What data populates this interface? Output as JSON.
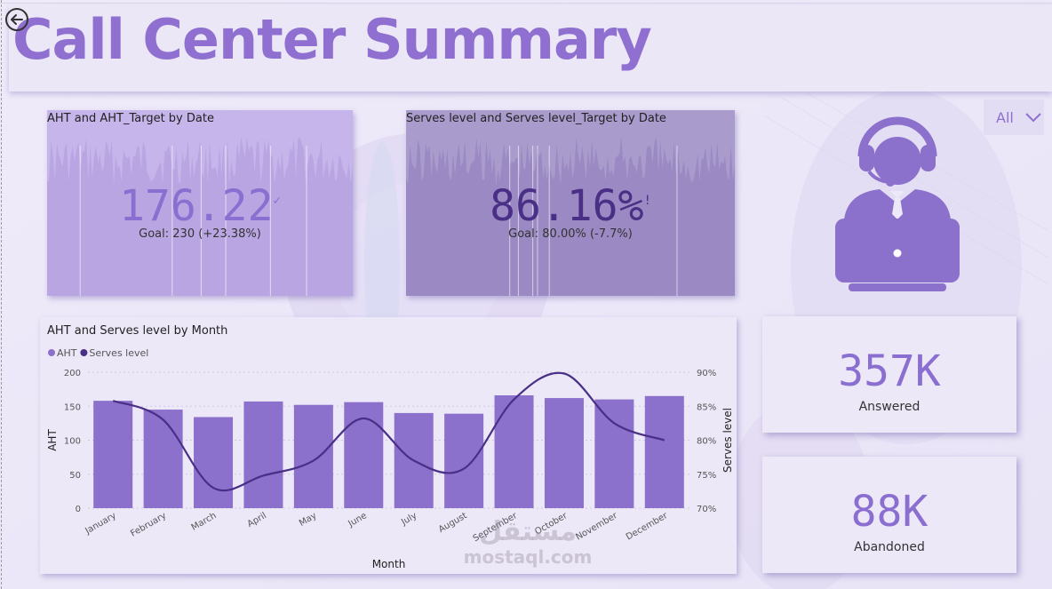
{
  "header": {
    "title": "Call Center Summary"
  },
  "slicer": {
    "value": "All"
  },
  "kpi_aht": {
    "title": "AHT and AHT_Target by Date",
    "value": "176.22",
    "status_mark": "✓",
    "goal": "Goal: 230 (+23.38%)"
  },
  "kpi_sl": {
    "title": "Serves level and Serves level_Target by Date",
    "value": "86.16%",
    "status_mark": "!",
    "goal": "Goal: 80.00% (-7.7%)"
  },
  "stats": {
    "answered_value": "357K",
    "answered_label": "Answered",
    "abandoned_value": "88K",
    "abandoned_label": "Abandoned"
  },
  "watermark": {
    "arabic": "مستقل",
    "latin": "mostaql.com"
  },
  "icons": {
    "back": "back-arrow-icon",
    "chevron": "chevron-down-icon",
    "agent": "call-center-agent-icon"
  },
  "colors": {
    "accent": "#8f6fd0",
    "bar": "#8b70cc",
    "line": "#4a2f86"
  },
  "chart_data": {
    "type": "bar",
    "title": "AHT and Serves level by Month",
    "xlabel": "Month",
    "ylabel": "AHT",
    "y2label": "Serves level",
    "categories": [
      "January",
      "February",
      "March",
      "April",
      "May",
      "June",
      "July",
      "August",
      "September",
      "October",
      "November",
      "December"
    ],
    "series": [
      {
        "name": "AHT",
        "type": "bar",
        "axis": "left",
        "values": [
          158,
          145,
          134,
          157,
          152,
          156,
          140,
          139,
          166,
          162,
          160,
          165
        ]
      },
      {
        "name": "Serves level",
        "type": "line",
        "axis": "right",
        "values": [
          85.8,
          83.0,
          73.0,
          74.8,
          77.0,
          83.2,
          77.0,
          75.8,
          86.0,
          89.8,
          82.5,
          80.0
        ]
      }
    ],
    "ylim": [
      0,
      200
    ],
    "yticks": [
      "0",
      "50",
      "100",
      "150",
      "200"
    ],
    "y2lim": [
      70,
      90
    ],
    "y2ticks": [
      "70%",
      "75%",
      "80%",
      "85%",
      "90%"
    ],
    "legend": "top-left",
    "grid": true
  }
}
